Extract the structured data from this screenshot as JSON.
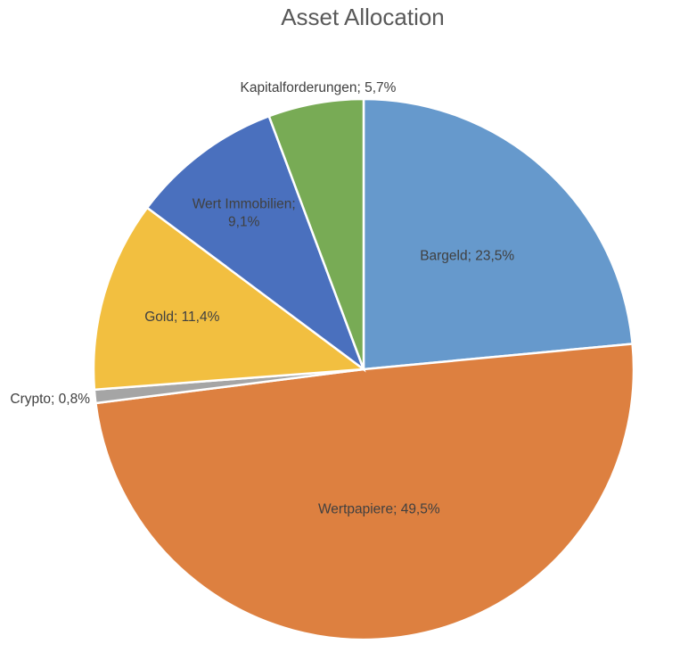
{
  "chart_data": {
    "type": "pie",
    "title": "Asset Allocation",
    "start_angle_deg": 0,
    "direction": "clockwise",
    "slices": [
      {
        "name": "Bargeld",
        "value": 23.5,
        "label": "Bargeld; 23,5%",
        "color": "#6699CC"
      },
      {
        "name": "Wertpapiere",
        "value": 49.5,
        "label": "Wertpapiere; 49,5%",
        "color": "#DD8040"
      },
      {
        "name": "Crypto",
        "value": 0.8,
        "label": "Crypto; 0,8%",
        "color": "#A5A5A5"
      },
      {
        "name": "Gold",
        "value": 11.4,
        "label": "Gold; 11,4%",
        "color": "#F2BF40"
      },
      {
        "name": "Wert Immobilien",
        "value": 9.1,
        "label": "Wert Immobilien;\n9,1%",
        "color": "#4A70BE"
      },
      {
        "name": "Kapitalforderungen",
        "value": 5.7,
        "label": "Kapitalforderungen; 5,7%",
        "color": "#78AB55"
      }
    ]
  }
}
